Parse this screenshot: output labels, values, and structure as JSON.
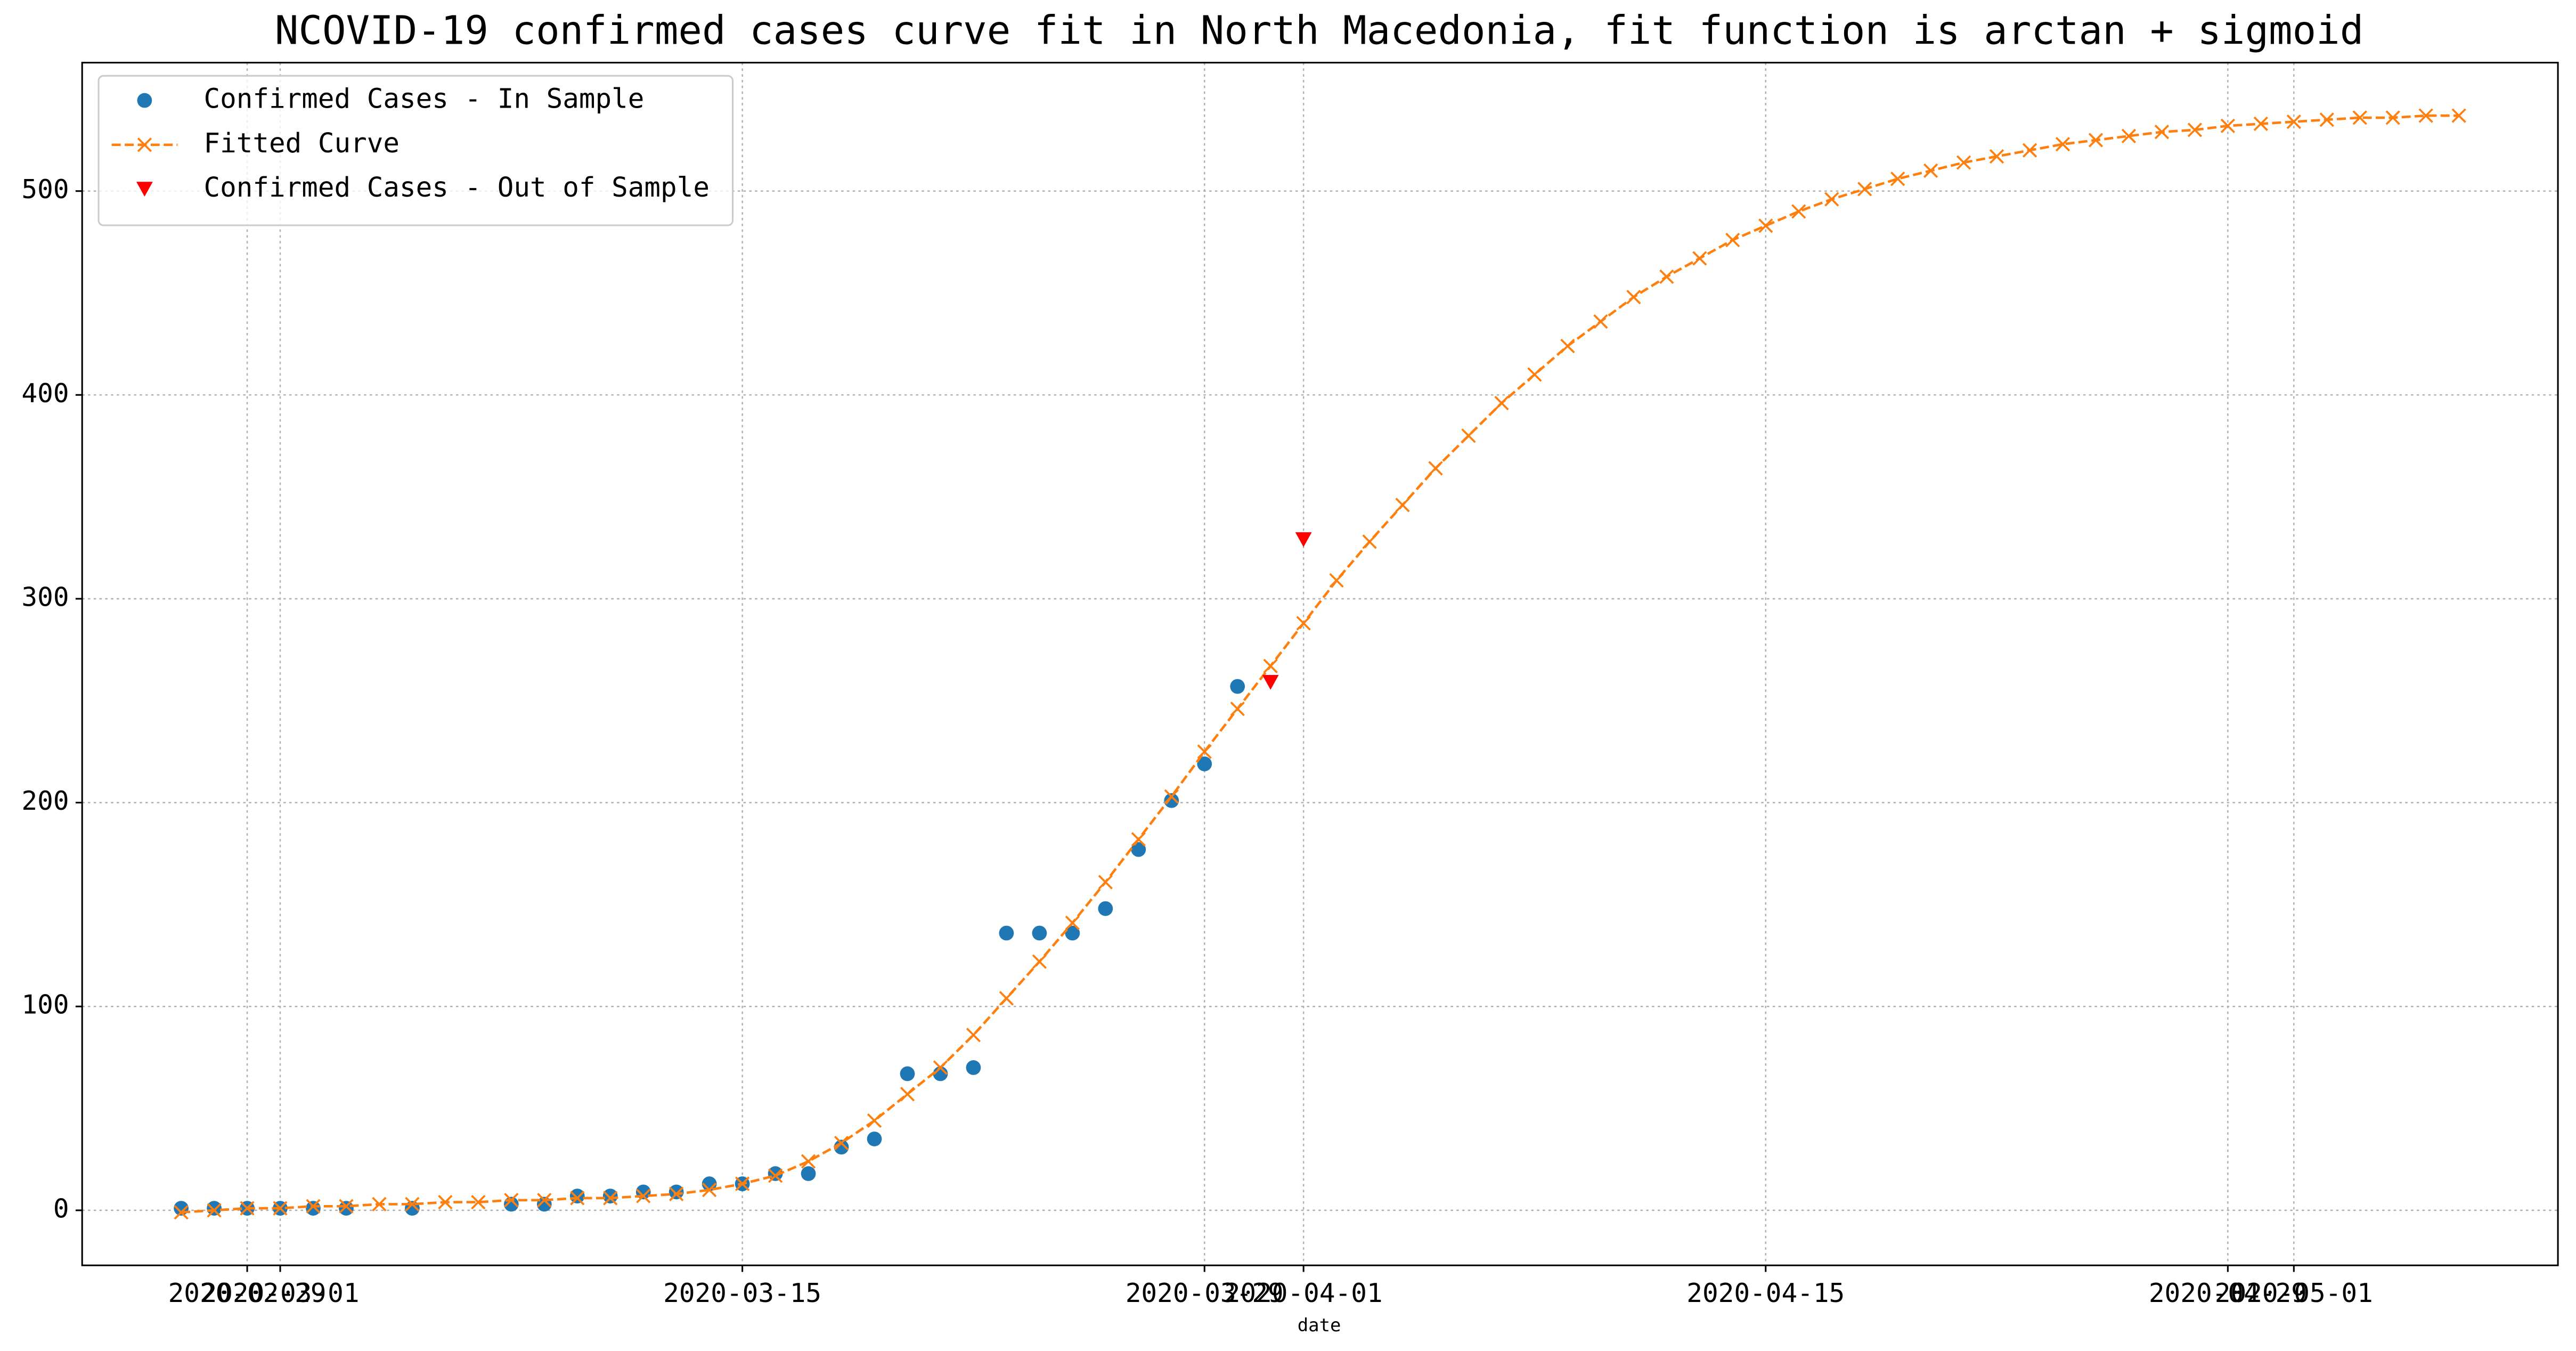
{
  "chart_data": {
    "type": "line",
    "title": "NCOVID-19 confirmed cases curve fit in North Macedonia, fit function is arctan + sigmoid",
    "x_label": "date",
    "xlim": [
      "2020-02-24",
      "2020-05-09"
    ],
    "xticks": [
      "2020-02-29",
      "2020-03-01",
      "2020-03-15",
      "2020-03-29",
      "2020-04-01",
      "2020-04-15",
      "2020-04-29",
      "2020-05-01"
    ],
    "ylim": [
      -27,
      563
    ],
    "yticks": [
      0,
      100,
      200,
      300,
      400,
      500
    ],
    "grid": true,
    "legend": "upper left",
    "series": [
      {
        "name": "Confirmed Cases - In Sample",
        "color": "#1f77b4",
        "marker": "circle",
        "line": false,
        "x": [
          "2020-02-27",
          "2020-02-28",
          "2020-02-29",
          "2020-03-01",
          "2020-03-02",
          "2020-03-03",
          "2020-03-05",
          "2020-03-08",
          "2020-03-09",
          "2020-03-10",
          "2020-03-11",
          "2020-03-12",
          "2020-03-13",
          "2020-03-14",
          "2020-03-15",
          "2020-03-16",
          "2020-03-17",
          "2020-03-18",
          "2020-03-19",
          "2020-03-20",
          "2020-03-21",
          "2020-03-22",
          "2020-03-23",
          "2020-03-24",
          "2020-03-25",
          "2020-03-26",
          "2020-03-27",
          "2020-03-28",
          "2020-03-29",
          "2020-03-30"
        ],
        "values": [
          1,
          1,
          1,
          1,
          1,
          1,
          1,
          3,
          3,
          7,
          7,
          9,
          9,
          13,
          13,
          18,
          18,
          31,
          35,
          67,
          67,
          70,
          136,
          136,
          136,
          148,
          177,
          201,
          219,
          257
        ]
      },
      {
        "name": "Fitted Curve",
        "color": "#ff7f0e",
        "marker": "x",
        "line": true,
        "x": [
          "2020-02-27",
          "2020-02-28",
          "2020-02-29",
          "2020-03-01",
          "2020-03-02",
          "2020-03-03",
          "2020-03-04",
          "2020-03-05",
          "2020-03-06",
          "2020-03-07",
          "2020-03-08",
          "2020-03-09",
          "2020-03-10",
          "2020-03-11",
          "2020-03-12",
          "2020-03-13",
          "2020-03-14",
          "2020-03-15",
          "2020-03-16",
          "2020-03-17",
          "2020-03-18",
          "2020-03-19",
          "2020-03-20",
          "2020-03-21",
          "2020-03-22",
          "2020-03-23",
          "2020-03-24",
          "2020-03-25",
          "2020-03-26",
          "2020-03-27",
          "2020-03-28",
          "2020-03-29",
          "2020-03-30",
          "2020-03-31",
          "2020-04-01",
          "2020-04-02",
          "2020-04-03",
          "2020-04-04",
          "2020-04-05",
          "2020-04-06",
          "2020-04-07",
          "2020-04-08",
          "2020-04-09",
          "2020-04-10",
          "2020-04-11",
          "2020-04-12",
          "2020-04-13",
          "2020-04-14",
          "2020-04-15",
          "2020-04-16",
          "2020-04-17",
          "2020-04-18",
          "2020-04-19",
          "2020-04-20",
          "2020-04-21",
          "2020-04-22",
          "2020-04-23",
          "2020-04-24",
          "2020-04-25",
          "2020-04-26",
          "2020-04-27",
          "2020-04-28",
          "2020-04-29",
          "2020-04-30",
          "2020-05-01",
          "2020-05-02",
          "2020-05-03",
          "2020-05-04",
          "2020-05-05",
          "2020-05-06"
        ],
        "values": [
          -1,
          0,
          1,
          1,
          2,
          2,
          3,
          3,
          4,
          4,
          5,
          5,
          6,
          6,
          7,
          8,
          10,
          13,
          17,
          24,
          33,
          44,
          57,
          70,
          86,
          104,
          122,
          141,
          161,
          182,
          203,
          225,
          246,
          267,
          288,
          309,
          328,
          346,
          364,
          380,
          396,
          410,
          424,
          436,
          448,
          458,
          467,
          476,
          483,
          490,
          496,
          501,
          506,
          510,
          514,
          517,
          520,
          523,
          525,
          527,
          529,
          530,
          532,
          533,
          534,
          535,
          536,
          536,
          537,
          537
        ]
      },
      {
        "name": "Confirmed Cases - Out of Sample",
        "color": "#ff0000",
        "marker": "triangle-down",
        "line": false,
        "x": [
          "2020-03-31",
          "2020-04-01"
        ],
        "values": [
          259,
          329
        ]
      }
    ]
  }
}
